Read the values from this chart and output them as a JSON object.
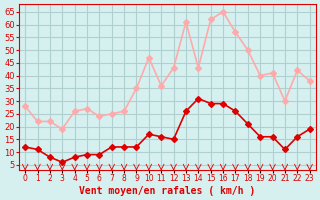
{
  "x": [
    0,
    1,
    2,
    3,
    4,
    5,
    6,
    7,
    8,
    9,
    10,
    11,
    12,
    13,
    14,
    15,
    16,
    17,
    18,
    19,
    20,
    21,
    22,
    23
  ],
  "wind_avg": [
    12,
    11,
    8,
    6,
    8,
    9,
    9,
    12,
    12,
    12,
    17,
    16,
    15,
    26,
    31,
    29,
    29,
    26,
    21,
    16,
    16,
    11,
    16,
    19
  ],
  "wind_gust": [
    28,
    22,
    22,
    19,
    26,
    27,
    24,
    25,
    26,
    35,
    47,
    36,
    43,
    61,
    43,
    62,
    65,
    57,
    50,
    40,
    41,
    30,
    42,
    38
  ],
  "bg_color": "#d6f0f0",
  "grid_color": "#b0d0d0",
  "avg_color": "#dd0000",
  "gust_color": "#ffaaaa",
  "xlabel": "Vent moyen/en rafales ( km/h )",
  "ylabel_ticks": [
    5,
    10,
    15,
    20,
    25,
    30,
    35,
    40,
    45,
    50,
    55,
    60,
    65
  ],
  "ylim": [
    3,
    68
  ],
  "xlim": [
    -0.5,
    23.5
  ],
  "marker": "D",
  "markersize": 3,
  "linewidth": 1.2
}
